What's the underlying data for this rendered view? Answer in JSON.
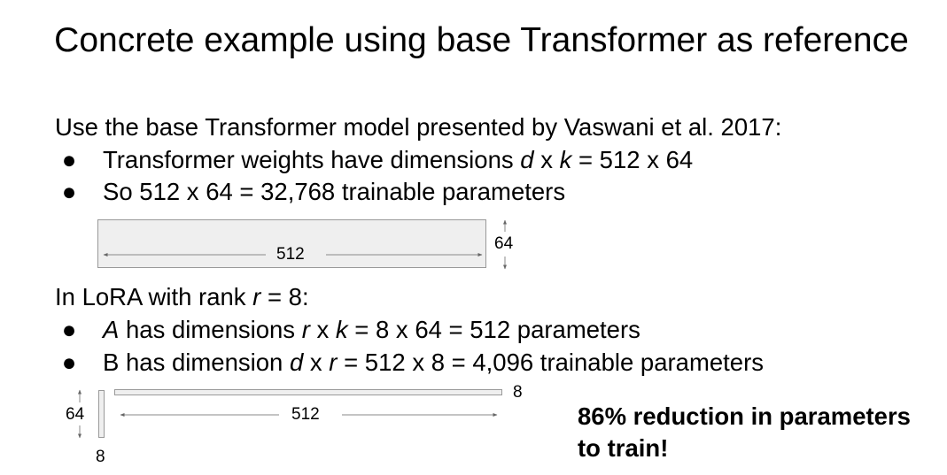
{
  "title": "Concrete example using base Transformer as reference",
  "base_section": {
    "intro": "Use the base Transformer model presented by Vaswani et al. 2017:",
    "bullets": [
      {
        "before": "Transformer weights have dimensions ",
        "var1": "d",
        "mid": " x ",
        "var2": "k",
        "after": " = 512 x 64"
      },
      {
        "text": "So 512 x 64 = 32,768 trainable parameters"
      }
    ]
  },
  "base_diagram": {
    "width_label": "512",
    "height_label": "64"
  },
  "lora_section": {
    "intro_before": "In LoRA with rank ",
    "intro_var": "r",
    "intro_after": " = 8:",
    "bullets": [
      {
        "var0": "A",
        "before": " has dimensions ",
        "var1": "r",
        "mid": " x ",
        "var2": "k",
        "after": " = 8 x 64 = 512 parameters"
      },
      {
        "before": "B has dimension ",
        "var1": "d",
        "mid": " x ",
        "var2": "r",
        "after": " = 512 x 8 = 4,096 trainable parameters"
      }
    ]
  },
  "lora_diagram": {
    "a_height_label": "64",
    "a_width_label": "8",
    "b_width_label": "512",
    "b_height_label": "8"
  },
  "callout": {
    "line1": "86% reduction in parameters",
    "line2": "to train!"
  },
  "bullet_glyph": "●"
}
